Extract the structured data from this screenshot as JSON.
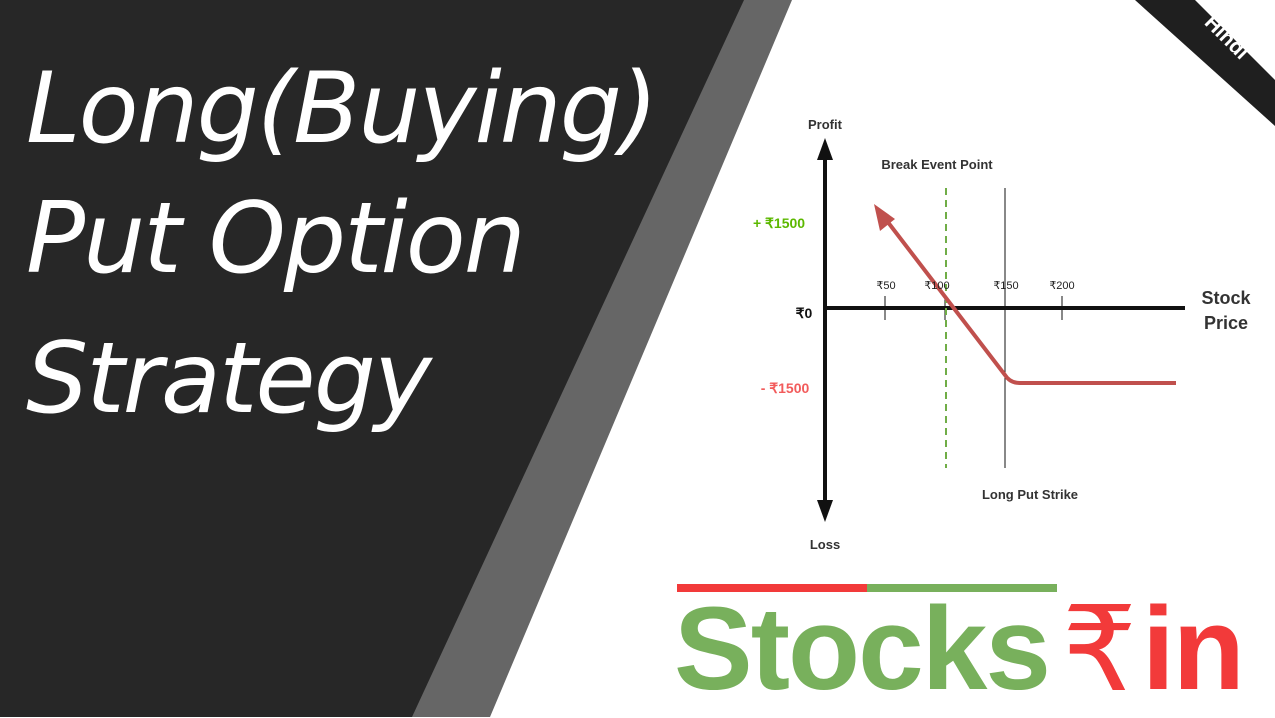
{
  "title": {
    "lines": [
      "Long(Buying)",
      "Put Option",
      "Strategy"
    ]
  },
  "badge": {
    "label": "Hindi"
  },
  "diagram": {
    "profit_label": "Profit",
    "loss_label": "Loss",
    "x_axis_label_line1": "Stock",
    "x_axis_label_line2": "Price",
    "zero_label": "₹0",
    "profit_value_label": "+ ₹1500",
    "loss_value_label": "- ₹1500",
    "breakeven_label": "Break Event Point",
    "strike_label": "Long Put Strike",
    "ticks": [
      "₹50",
      "₹100",
      "₹150",
      "₹200"
    ],
    "colors": {
      "payoff": "#c0504d",
      "breakeven": "#70ad47",
      "profit": "#5cb800",
      "loss": "#f25b5b"
    }
  },
  "logo": {
    "word": "Stocks",
    "symbol": "₹",
    "suffix": "in",
    "colors": {
      "green": "#78b05c",
      "red": "#f23a3a"
    }
  }
}
